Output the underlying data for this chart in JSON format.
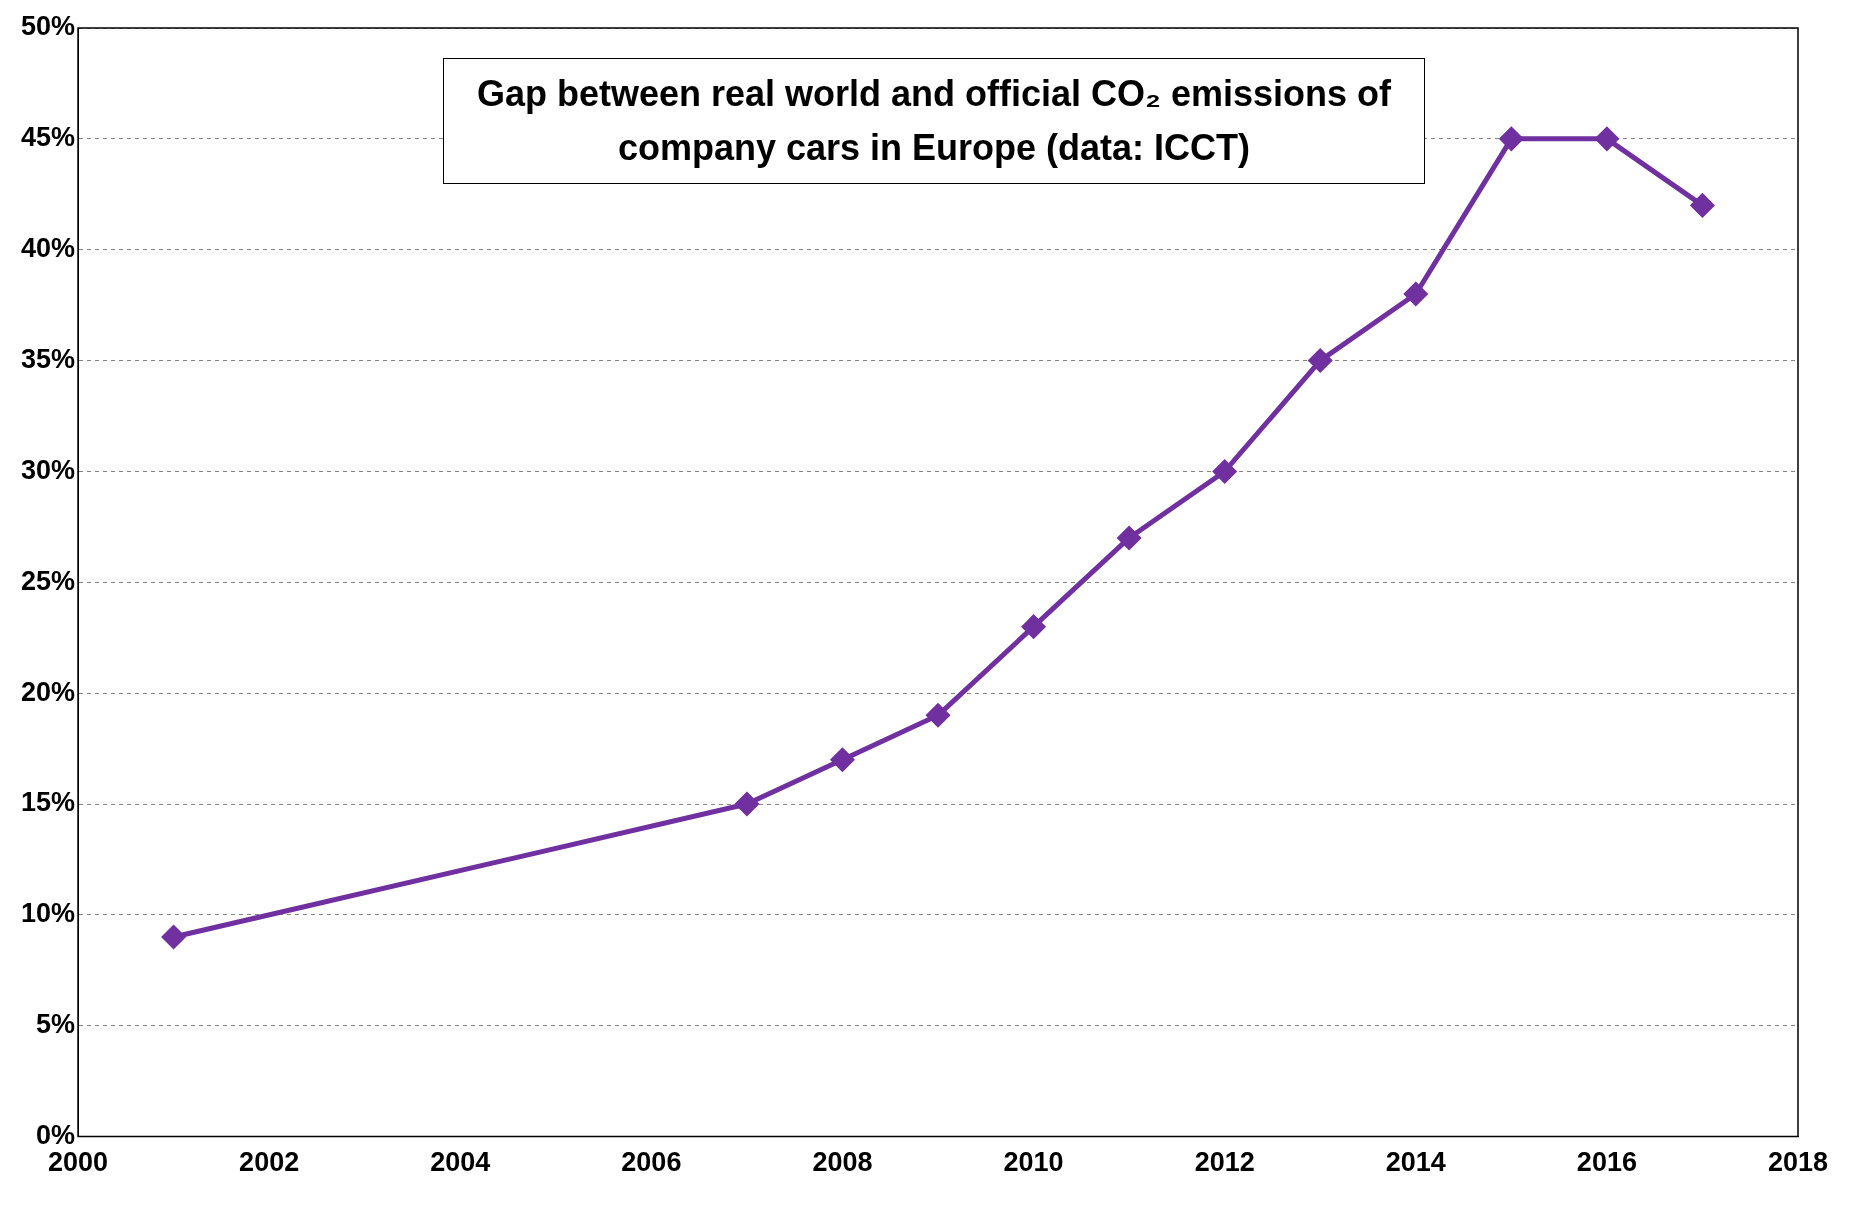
{
  "chart_data": {
    "type": "line",
    "title": "Gap between real world and official CO₂ emissions of company cars in Europe (data: ICCT)",
    "x": [
      2001,
      2007,
      2008,
      2009,
      2010,
      2011,
      2012,
      2013,
      2014,
      2015,
      2016,
      2017
    ],
    "series": [
      {
        "color": "#7030a0",
        "values": [
          9,
          15,
          17,
          19,
          23,
          27,
          30,
          35,
          38,
          45,
          45,
          42
        ]
      }
    ],
    "xlim": [
      2000,
      2018
    ],
    "xticks": [
      2000,
      2002,
      2004,
      2006,
      2008,
      2010,
      2012,
      2014,
      2016,
      2018
    ],
    "ylim": [
      0,
      50
    ],
    "yticks": [
      {
        "value": 0,
        "label": "0%"
      },
      {
        "value": 5,
        "label": "5%"
      },
      {
        "value": 10,
        "label": "10%"
      },
      {
        "value": 15,
        "label": "15%"
      },
      {
        "value": 20,
        "label": "20%"
      },
      {
        "value": 25,
        "label": "25%"
      },
      {
        "value": 30,
        "label": "30%"
      },
      {
        "value": 35,
        "label": "35%"
      },
      {
        "value": 40,
        "label": "40%"
      },
      {
        "value": 45,
        "label": "45%"
      },
      {
        "value": 50,
        "label": "50%"
      }
    ],
    "grid": "y",
    "legend": false,
    "marker": "diamond",
    "line_style": "solid"
  }
}
